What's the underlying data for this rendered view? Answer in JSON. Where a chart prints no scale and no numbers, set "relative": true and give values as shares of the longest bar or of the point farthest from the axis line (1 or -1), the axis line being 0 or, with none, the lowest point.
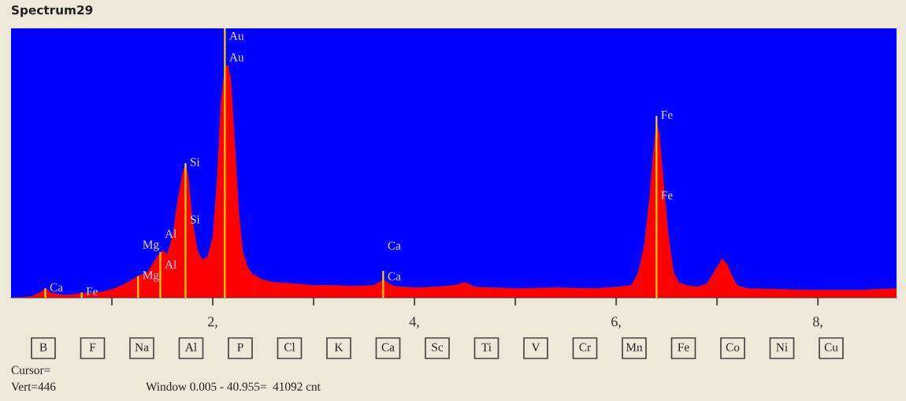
{
  "chart_data": {
    "type": "area",
    "title": "Spectrum29",
    "relative": true,
    "xlim": [
      0,
      8.78
    ],
    "xticks": [
      {
        "value": 1,
        "label": null
      },
      {
        "value": 2,
        "label": "2,"
      },
      {
        "value": 3,
        "label": null
      },
      {
        "value": 4,
        "label": "4,"
      },
      {
        "value": 5,
        "label": null
      },
      {
        "value": 6,
        "label": "6,"
      },
      {
        "value": 7,
        "label": null
      },
      {
        "value": 8,
        "label": "8,"
      }
    ],
    "grid": false,
    "legend": false,
    "series": [
      {
        "color": "#ff0000",
        "x": [
          0.0,
          0.2,
          0.3,
          0.34,
          0.4,
          0.5,
          0.6,
          0.7,
          0.8,
          0.9,
          1.0,
          1.1,
          1.2,
          1.26,
          1.35,
          1.45,
          1.5,
          1.55,
          1.6,
          1.65,
          1.7,
          1.73,
          1.76,
          1.8,
          1.85,
          1.9,
          1.95,
          2.0,
          2.04,
          2.08,
          2.12,
          2.15,
          2.18,
          2.22,
          2.26,
          2.3,
          2.35,
          2.4,
          2.5,
          2.6,
          2.8,
          3.0,
          3.2,
          3.4,
          3.6,
          3.69,
          3.75,
          3.8,
          4.0,
          4.2,
          4.4,
          4.5,
          4.6,
          4.8,
          5.0,
          5.4,
          5.8,
          6.0,
          6.15,
          6.22,
          6.28,
          6.33,
          6.37,
          6.4,
          6.43,
          6.47,
          6.52,
          6.57,
          6.62,
          6.7,
          6.8,
          6.9,
          6.97,
          7.05,
          7.1,
          7.15,
          7.2,
          7.3,
          7.6,
          8.0,
          8.4,
          8.78
        ],
        "values": [
          0.0,
          0.006,
          0.023,
          0.035,
          0.018,
          0.012,
          0.012,
          0.018,
          0.018,
          0.023,
          0.032,
          0.047,
          0.067,
          0.082,
          0.094,
          0.155,
          0.175,
          0.164,
          0.228,
          0.36,
          0.462,
          0.5,
          0.447,
          0.287,
          0.175,
          0.14,
          0.155,
          0.228,
          0.433,
          0.725,
          0.857,
          0.865,
          0.813,
          0.579,
          0.316,
          0.17,
          0.111,
          0.088,
          0.067,
          0.058,
          0.053,
          0.047,
          0.047,
          0.044,
          0.047,
          0.067,
          0.053,
          0.044,
          0.038,
          0.041,
          0.047,
          0.058,
          0.041,
          0.038,
          0.035,
          0.038,
          0.035,
          0.041,
          0.047,
          0.096,
          0.199,
          0.374,
          0.55,
          0.652,
          0.608,
          0.433,
          0.228,
          0.096,
          0.058,
          0.047,
          0.041,
          0.053,
          0.096,
          0.146,
          0.126,
          0.082,
          0.047,
          0.035,
          0.032,
          0.029,
          0.029,
          0.035
        ]
      },
      {
        "type": "bar",
        "color": "#ffcc00",
        "x": [
          0.34,
          0.7,
          1.26,
          1.48,
          1.73,
          2.12,
          3.69,
          6.4
        ],
        "values": [
          0.035,
          0.02,
          0.08,
          0.17,
          0.5,
          1.0,
          0.1,
          0.675
        ]
      }
    ],
    "annotations": [
      "B",
      "F",
      "Na",
      "Al",
      "P",
      "Cl",
      "K",
      "Ca",
      "Sc",
      "Ti",
      "V",
      "Cr",
      "Mn",
      "Fe",
      "Co",
      "Ni",
      "Cu",
      "Cursor=",
      "Vert=446",
      "Window 0.005 - 40.955=  41092 cnt",
      {
        "text": "Ca",
        "x": 0.34,
        "y": 0.035
      },
      {
        "text": "Fe",
        "x": 0.7,
        "y": 0.02
      },
      {
        "text": "Mg",
        "x": 1.26,
        "y": 0.08
      },
      "Mg",
      {
        "text": "Al",
        "x": 1.48,
        "y": 0.12
      },
      "Al",
      {
        "text": "Si",
        "x": 1.73,
        "y": 0.5
      },
      {
        "text": "Si",
        "x": 1.73,
        "y": 0.287
      },
      {
        "text": "Au",
        "x": 2.12,
        "y": 0.968
      },
      {
        "text": "Au",
        "x": 2.12,
        "y": 0.889
      },
      {
        "text": "Ca",
        "x": 3.69,
        "y": 0.076
      },
      "Ca",
      {
        "text": "Fe",
        "x": 6.4,
        "y": 0.675
      },
      {
        "text": "Fe",
        "x": 6.4,
        "y": 0.377
      }
    ]
  }
}
